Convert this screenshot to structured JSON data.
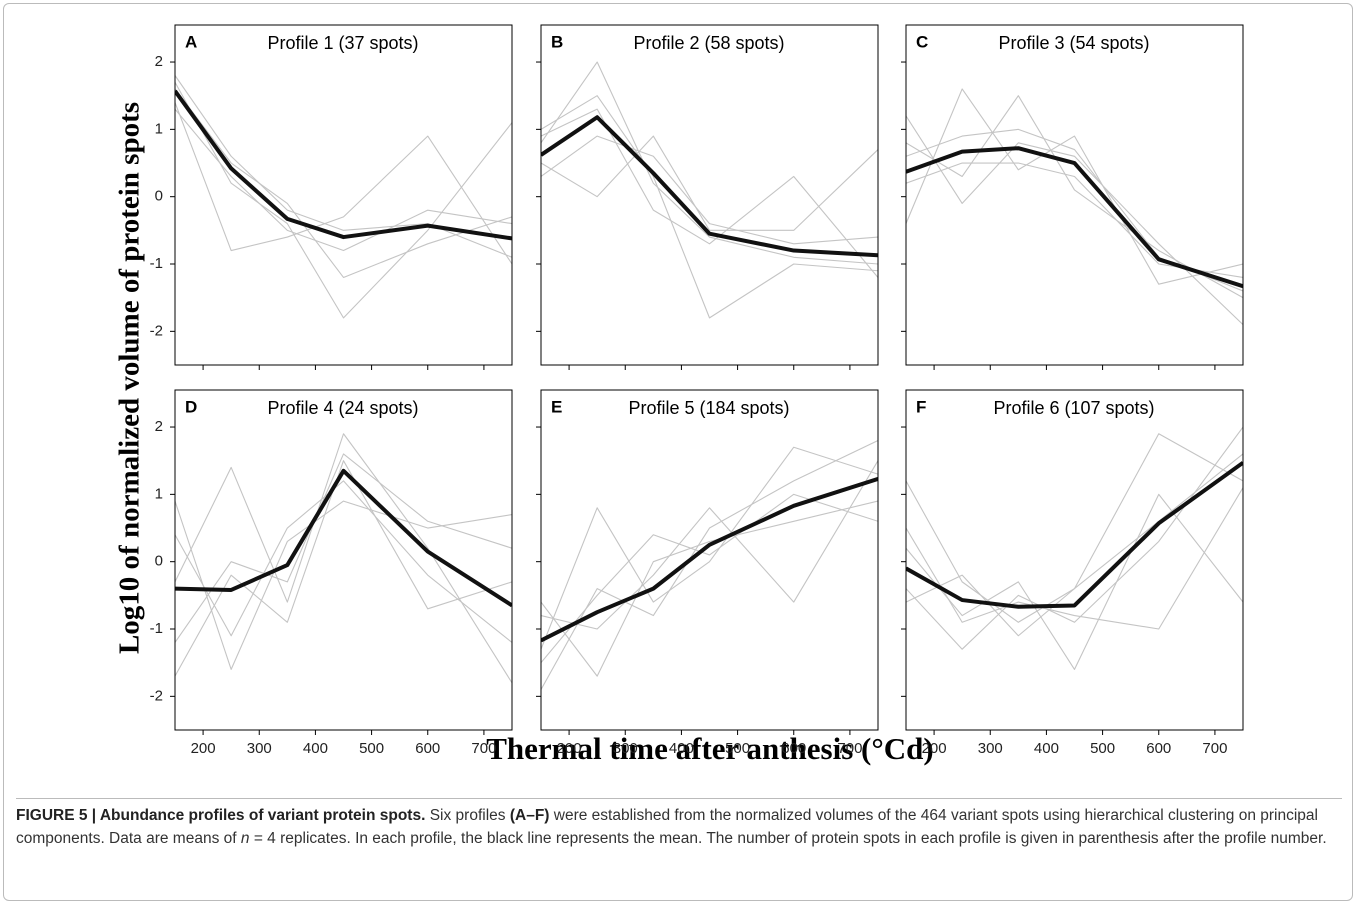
{
  "axis_labels": {
    "y": "Log10 of normalized volume of protein spots",
    "x": "Thermal time after anthesis (°Cd)"
  },
  "chart_data": [
    {
      "type": "line",
      "letter": "A",
      "title": "Profile 1 (37 spots)",
      "x": [
        150,
        250,
        350,
        450,
        600,
        750
      ],
      "xlim": [
        150,
        750
      ],
      "ylim": [
        -2.5,
        2.55
      ],
      "xticks": [
        200,
        300,
        400,
        500,
        600,
        700
      ],
      "yticks": [
        -2,
        -1,
        0,
        1,
        2
      ],
      "series": [
        {
          "color": "#c4c4c4",
          "values": [
            1.8,
            0.6,
            -0.2,
            -0.5,
            -0.4,
            -0.9
          ]
        },
        {
          "color": "#c4c4c4",
          "values": [
            1.3,
            0.3,
            -0.5,
            -0.8,
            -0.2,
            -0.4
          ]
        },
        {
          "color": "#c4c4c4",
          "values": [
            1.6,
            0.5,
            -0.1,
            -1.2,
            -0.7,
            -0.3
          ]
        },
        {
          "color": "#c4c4c4",
          "values": [
            1.4,
            -0.8,
            -0.6,
            -0.3,
            0.9,
            -1.0
          ]
        },
        {
          "color": "#c4c4c4",
          "values": [
            1.7,
            0.2,
            -0.4,
            -1.8,
            -0.5,
            1.1
          ]
        },
        {
          "color": "#111111",
          "values": [
            1.57,
            0.42,
            -0.33,
            -0.6,
            -0.43,
            -0.62
          ]
        }
      ]
    },
    {
      "type": "line",
      "letter": "B",
      "title": "Profile 2 (58 spots)",
      "x": [
        150,
        250,
        350,
        450,
        600,
        750
      ],
      "xlim": [
        150,
        750
      ],
      "ylim": [
        -2.5,
        2.55
      ],
      "xticks": [
        200,
        300,
        400,
        500,
        600,
        700
      ],
      "yticks": [
        -2,
        -1,
        0,
        1,
        2
      ],
      "series": [
        {
          "color": "#c4c4c4",
          "values": [
            0.8,
            2.0,
            0.2,
            -0.6,
            -0.9,
            -1.0
          ]
        },
        {
          "color": "#c4c4c4",
          "values": [
            0.3,
            0.9,
            0.6,
            -0.4,
            -0.7,
            -0.6
          ]
        },
        {
          "color": "#c4c4c4",
          "values": [
            1.0,
            1.5,
            0.3,
            -1.8,
            -1.0,
            -1.1
          ]
        },
        {
          "color": "#c4c4c4",
          "values": [
            0.5,
            0.0,
            0.9,
            -0.5,
            -0.5,
            0.7
          ]
        },
        {
          "color": "#c4c4c4",
          "values": [
            0.9,
            1.3,
            -0.2,
            -0.7,
            0.3,
            -1.2
          ]
        },
        {
          "color": "#111111",
          "values": [
            0.62,
            1.18,
            0.35,
            -0.55,
            -0.8,
            -0.87
          ]
        }
      ]
    },
    {
      "type": "line",
      "letter": "C",
      "title": "Profile 3 (54 spots)",
      "x": [
        150,
        250,
        350,
        450,
        600,
        750
      ],
      "xlim": [
        150,
        750
      ],
      "ylim": [
        -2.5,
        2.55
      ],
      "xticks": [
        200,
        300,
        400,
        500,
        600,
        700
      ],
      "yticks": [
        -2,
        -1,
        0,
        1,
        2
      ],
      "series": [
        {
          "color": "#c4c4c4",
          "values": [
            0.6,
            0.9,
            1.0,
            0.7,
            -0.9,
            -1.4
          ]
        },
        {
          "color": "#c4c4c4",
          "values": [
            0.2,
            0.5,
            0.5,
            0.3,
            -1.0,
            -1.2
          ]
        },
        {
          "color": "#c4c4c4",
          "values": [
            1.2,
            -0.1,
            0.8,
            0.6,
            -0.7,
            -1.9
          ]
        },
        {
          "color": "#c4c4c4",
          "values": [
            -0.4,
            1.6,
            0.4,
            0.9,
            -1.3,
            -1.0
          ]
        },
        {
          "color": "#c4c4c4",
          "values": [
            0.8,
            0.3,
            1.5,
            0.1,
            -0.8,
            -1.5
          ]
        },
        {
          "color": "#111111",
          "values": [
            0.37,
            0.67,
            0.72,
            0.5,
            -0.93,
            -1.33
          ]
        }
      ]
    },
    {
      "type": "line",
      "letter": "D",
      "title": "Profile 4 (24 spots)",
      "x": [
        150,
        250,
        350,
        450,
        600,
        750
      ],
      "xlim": [
        150,
        750
      ],
      "ylim": [
        -2.5,
        2.55
      ],
      "xticks": [
        200,
        300,
        400,
        500,
        600,
        700
      ],
      "yticks": [
        -2,
        -1,
        0,
        1,
        2
      ],
      "series": [
        {
          "color": "#c4c4c4",
          "values": [
            -0.3,
            1.4,
            -0.6,
            1.9,
            0.2,
            -1.8
          ]
        },
        {
          "color": "#c4c4c4",
          "values": [
            0.9,
            -1.6,
            0.3,
            0.9,
            0.5,
            0.7
          ]
        },
        {
          "color": "#c4c4c4",
          "values": [
            -1.7,
            -0.2,
            -0.9,
            1.5,
            -0.7,
            -0.3
          ]
        },
        {
          "color": "#c4c4c4",
          "values": [
            0.4,
            -1.1,
            0.5,
            1.2,
            -0.2,
            -1.2
          ]
        },
        {
          "color": "#c4c4c4",
          "values": [
            -1.2,
            0.0,
            -0.3,
            1.6,
            0.6,
            0.2
          ]
        },
        {
          "color": "#111111",
          "values": [
            -0.4,
            -0.42,
            -0.05,
            1.35,
            0.15,
            -0.65
          ]
        }
      ]
    },
    {
      "type": "line",
      "letter": "E",
      "title": "Profile 5 (184 spots)",
      "x": [
        150,
        250,
        350,
        450,
        600,
        750
      ],
      "xlim": [
        150,
        750
      ],
      "ylim": [
        -2.5,
        2.55
      ],
      "xticks": [
        200,
        300,
        400,
        500,
        600,
        700
      ],
      "yticks": [
        -2,
        -1,
        0,
        1,
        2
      ],
      "series": [
        {
          "color": "#c4c4c4",
          "values": [
            -1.9,
            -0.4,
            -0.8,
            0.5,
            1.2,
            1.8
          ]
        },
        {
          "color": "#c4c4c4",
          "values": [
            -0.6,
            -1.7,
            0.0,
            0.3,
            0.6,
            0.9
          ]
        },
        {
          "color": "#c4c4c4",
          "values": [
            -1.3,
            0.8,
            -0.6,
            0.0,
            1.7,
            1.3
          ]
        },
        {
          "color": "#c4c4c4",
          "values": [
            -0.8,
            -1.0,
            -0.2,
            0.8,
            -0.6,
            1.5
          ]
        },
        {
          "color": "#c4c4c4",
          "values": [
            -1.5,
            -0.5,
            0.4,
            0.1,
            1.0,
            0.6
          ]
        },
        {
          "color": "#111111",
          "values": [
            -1.17,
            -0.75,
            -0.4,
            0.25,
            0.83,
            1.23
          ]
        }
      ]
    },
    {
      "type": "line",
      "letter": "F",
      "title": "Profile 6 (107 spots)",
      "x": [
        150,
        250,
        350,
        450,
        600,
        750
      ],
      "xlim": [
        150,
        750
      ],
      "ylim": [
        -2.5,
        2.55
      ],
      "xticks": [
        200,
        300,
        400,
        500,
        600,
        700
      ],
      "yticks": [
        -2,
        -1,
        0,
        1,
        2
      ],
      "series": [
        {
          "color": "#c4c4c4",
          "values": [
            1.2,
            -0.3,
            -0.9,
            -0.4,
            1.9,
            1.2
          ]
        },
        {
          "color": "#c4c4c4",
          "values": [
            -0.4,
            -1.3,
            -0.5,
            -0.9,
            0.3,
            2.0
          ]
        },
        {
          "color": "#c4c4c4",
          "values": [
            0.2,
            -0.8,
            -0.3,
            -1.6,
            1.0,
            -0.6
          ]
        },
        {
          "color": "#c4c4c4",
          "values": [
            -0.6,
            -0.2,
            -1.1,
            -0.4,
            0.6,
            1.6
          ]
        },
        {
          "color": "#c4c4c4",
          "values": [
            0.5,
            -0.9,
            -0.6,
            -0.8,
            -1.0,
            1.1
          ]
        },
        {
          "color": "#111111",
          "values": [
            -0.1,
            -0.57,
            -0.67,
            -0.65,
            0.57,
            1.47
          ]
        }
      ]
    }
  ],
  "caption": {
    "label": "FIGURE 5 | Abundance profiles of variant protein spots.",
    "text1": "Six profiles",
    "panels": "(A–F)",
    "text2": "were established from the normalized volumes of the 464 variant spots using hierarchical clustering on principal components. Data are means of",
    "n": "n",
    "text3": "= 4 replicates. In each profile, the black line represents the mean. The number of protein spots in each profile is given in parenthesis after the profile number."
  }
}
